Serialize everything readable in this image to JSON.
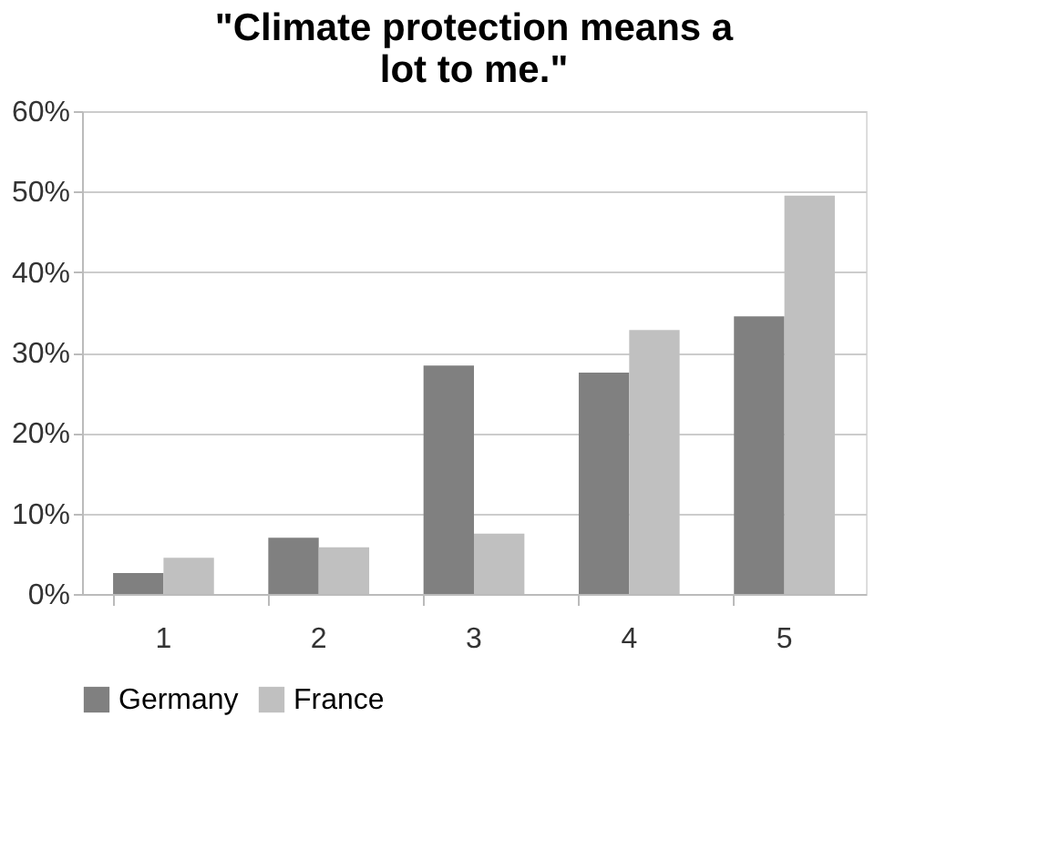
{
  "chart_data": {
    "type": "bar",
    "title": [
      "\"Climate protection means a",
      "lot to me.\""
    ],
    "categories": [
      "1",
      "2",
      "3",
      "4",
      "5"
    ],
    "series": [
      {
        "name": "Germany",
        "color": "#808080",
        "values": [
          2.6,
          7.0,
          28.4,
          27.5,
          34.5
        ]
      },
      {
        "name": "France",
        "color": "#c0c0c0",
        "values": [
          4.5,
          5.8,
          7.5,
          32.8,
          49.5
        ]
      }
    ],
    "ylim": [
      0,
      60
    ],
    "yticks": [
      {
        "value": 0,
        "label": "0%"
      },
      {
        "value": 10,
        "label": "10%"
      },
      {
        "value": 20,
        "label": "20%"
      },
      {
        "value": 30,
        "label": "30%"
      },
      {
        "value": 40,
        "label": "40%"
      },
      {
        "value": 50,
        "label": "50%"
      },
      {
        "value": 60,
        "label": "60%"
      }
    ],
    "grid": "y",
    "legend": "bottom"
  }
}
